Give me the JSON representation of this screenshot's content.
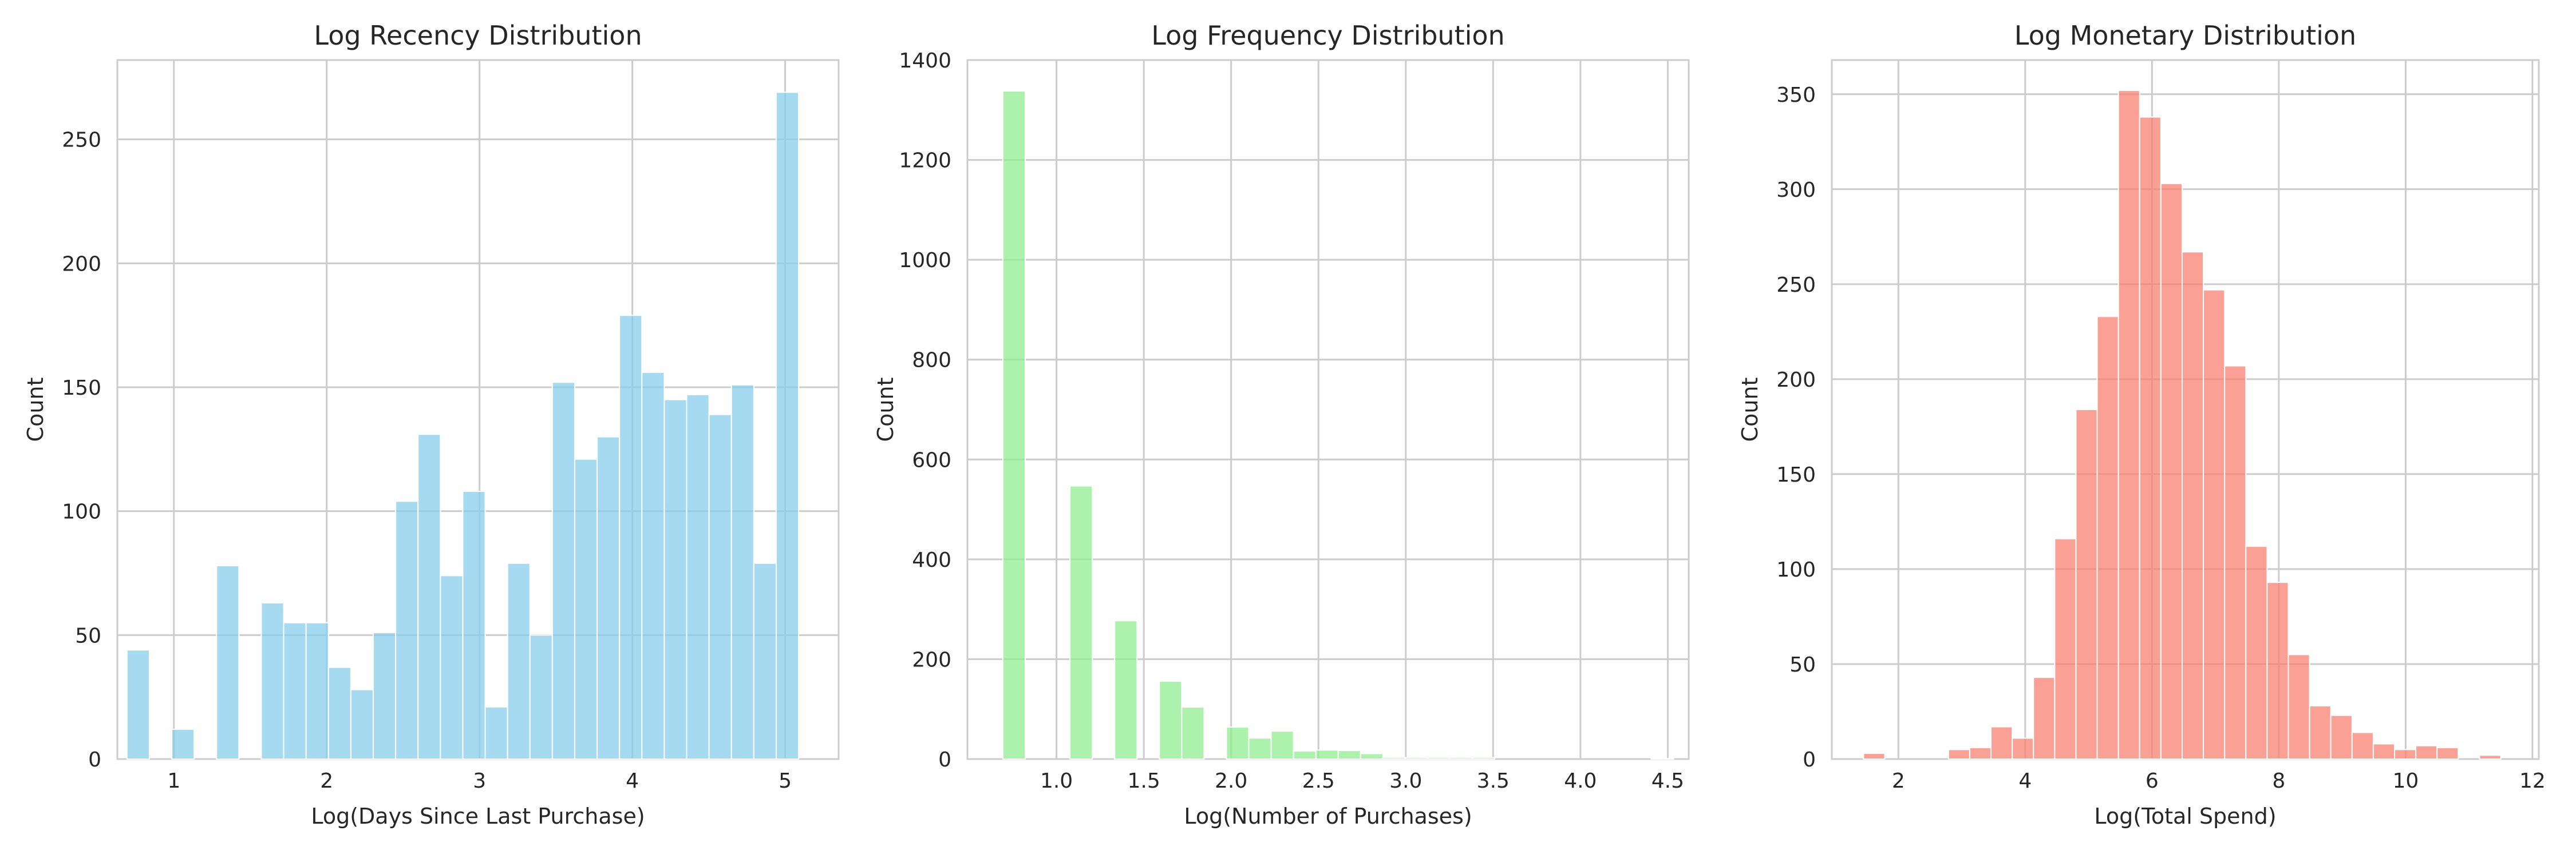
{
  "chart_data": [
    {
      "type": "bar",
      "title": "Log Recency Distribution",
      "xlabel": "Log(Days Since Last Purchase)",
      "ylabel": "Count",
      "xlim": [
        0.63,
        5.35
      ],
      "ylim": [
        0,
        282
      ],
      "xticks": [
        1,
        2,
        3,
        4,
        5
      ],
      "yticks": [
        0,
        50,
        100,
        150,
        200,
        250
      ],
      "grid": true,
      "color": "#87ceeb",
      "bin_start": 0.693,
      "bin_width": 0.1465,
      "values": [
        44,
        0,
        12,
        0,
        78,
        0,
        63,
        55,
        55,
        37,
        28,
        51,
        104,
        131,
        74,
        108,
        21,
        79,
        50,
        152,
        121,
        130,
        179,
        156,
        145,
        147,
        139,
        151,
        79,
        269
      ]
    },
    {
      "type": "bar",
      "title": "Log Frequency Distribution",
      "xlabel": "Log(Number of Purchases)",
      "ylabel": "Count",
      "xlim": [
        0.49,
        4.62
      ],
      "ylim": [
        0,
        1400
      ],
      "xticks": [
        1.0,
        1.5,
        2.0,
        2.5,
        3.0,
        3.5,
        4.0,
        4.5
      ],
      "yticks": [
        0,
        200,
        400,
        600,
        800,
        1000,
        1200,
        1400
      ],
      "grid": true,
      "color": "#90ee90",
      "bin_start": 0.693,
      "bin_width": 0.128,
      "values": [
        1338,
        0,
        0,
        547,
        0,
        277,
        0,
        156,
        104,
        0,
        64,
        42,
        56,
        16,
        18,
        17,
        11,
        3,
        3,
        3,
        3,
        3,
        0,
        0,
        0,
        0,
        0,
        0,
        0,
        1
      ]
    },
    {
      "type": "bar",
      "title": "Log Monetary Distribution",
      "xlabel": "Log(Total Spend)",
      "ylabel": "Count",
      "xlim": [
        0.95,
        12.1
      ],
      "ylim": [
        0,
        368
      ],
      "xticks": [
        2,
        4,
        6,
        8,
        10,
        12
      ],
      "yticks": [
        0,
        50,
        100,
        150,
        200,
        250,
        300,
        350
      ],
      "grid": true,
      "color": "#fa8072",
      "bin_start": 1.45,
      "bin_width": 0.335,
      "values": [
        3,
        0,
        0,
        0,
        5,
        6,
        17,
        11,
        43,
        116,
        184,
        233,
        352,
        338,
        303,
        267,
        247,
        207,
        112,
        93,
        55,
        28,
        23,
        14,
        8,
        5,
        7,
        6,
        0,
        2
      ]
    }
  ]
}
